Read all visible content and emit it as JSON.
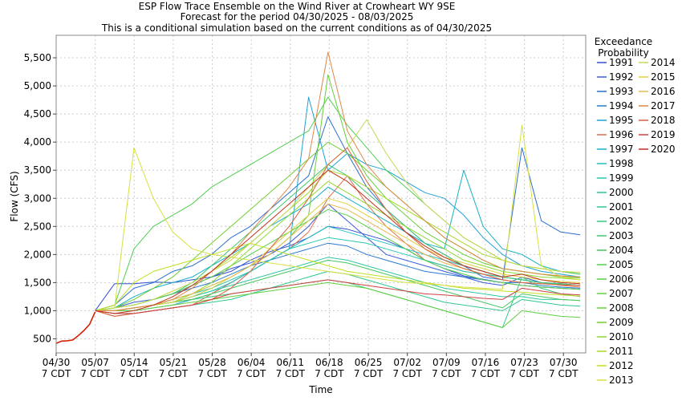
{
  "chart_data": {
    "type": "line",
    "title_lines": [
      "ESP Flow Trace Ensemble on the Wind River at Crowheart WY 9SE",
      "Forecast for the period 04/30/2025 - 08/03/2025",
      "This is a conditional simulation based on the current conditions as of 04/30/2025"
    ],
    "xlabel": "Time",
    "ylabel": "Flow (CFS)",
    "x_start": "2025-04-30",
    "x_end": "2025-08-03",
    "x_ticks": [
      {
        "date": "2025-04-30",
        "l1": "04/30",
        "l2": "7 CDT"
      },
      {
        "date": "2025-05-07",
        "l1": "05/07",
        "l2": "7 CDT"
      },
      {
        "date": "2025-05-14",
        "l1": "05/14",
        "l2": "7 CDT"
      },
      {
        "date": "2025-05-21",
        "l1": "05/21",
        "l2": "7 CDT"
      },
      {
        "date": "2025-05-28",
        "l1": "05/28",
        "l2": "7 CDT"
      },
      {
        "date": "2025-06-04",
        "l1": "06/04",
        "l2": "7 CDT"
      },
      {
        "date": "2025-06-11",
        "l1": "06/11",
        "l2": "7 CDT"
      },
      {
        "date": "2025-06-18",
        "l1": "06/18",
        "l2": "7 CDT"
      },
      {
        "date": "2025-06-25",
        "l1": "06/25",
        "l2": "7 CDT"
      },
      {
        "date": "2025-07-02",
        "l1": "07/02",
        "l2": "7 CDT"
      },
      {
        "date": "2025-07-09",
        "l1": "07/09",
        "l2": "7 CDT"
      },
      {
        "date": "2025-07-16",
        "l1": "07/16",
        "l2": "7 CDT"
      },
      {
        "date": "2025-07-23",
        "l1": "07/23",
        "l2": "7 CDT"
      },
      {
        "date": "2025-07-30",
        "l1": "07/30",
        "l2": "7 CDT"
      }
    ],
    "ylim": [
      250,
      5900
    ],
    "y_ticks": [
      {
        "value": 500,
        "label": "500"
      },
      {
        "value": 1000,
        "label": "1,000"
      },
      {
        "value": 1500,
        "label": "1,500"
      },
      {
        "value": 2000,
        "label": "2,000"
      },
      {
        "value": 2500,
        "label": "2,500"
      },
      {
        "value": 3000,
        "label": "3,000"
      },
      {
        "value": 3500,
        "label": "3,500"
      },
      {
        "value": 4000,
        "label": "4,000"
      },
      {
        "value": 4500,
        "label": "4,500"
      },
      {
        "value": 5000,
        "label": "5,000"
      },
      {
        "value": 5500,
        "label": "5,500"
      }
    ],
    "grid": true,
    "legend_title": [
      "Exceedance",
      "Probability"
    ],
    "legend_position": "right",
    "observed": {
      "color": "#d62000",
      "x": [
        "2025-04-30",
        "2025-05-01",
        "2025-05-02",
        "2025-05-03",
        "2025-05-04",
        "2025-05-05",
        "2025-05-06",
        "2025-05-07"
      ],
      "values": [
        420,
        460,
        465,
        480,
        560,
        650,
        760,
        980
      ]
    },
    "series": [
      {
        "name": "1991",
        "color": "#3050d0",
        "values": [
          1000,
          1480,
          1480,
          1510,
          1500,
          1550,
          1600,
          1700,
          1900,
          2050,
          2150,
          2300,
          2500,
          2450,
          2350,
          2250,
          2100,
          1900,
          1750,
          1620,
          1560,
          1500,
          1450,
          1420,
          1400,
          1380
        ]
      },
      {
        "name": "1992",
        "color": "#3a5ad8",
        "values": [
          1000,
          1050,
          1150,
          1200,
          1300,
          1450,
          1600,
          1750,
          1850,
          2000,
          2200,
          2500,
          2900,
          2600,
          2300,
          2000,
          1900,
          1800,
          1700,
          1600,
          1500,
          1450,
          1600,
          1500,
          1480,
          1450
        ]
      },
      {
        "name": "1993",
        "color": "#2c6fd0",
        "values": [
          1000,
          1100,
          1400,
          1500,
          1700,
          1800,
          2000,
          2300,
          2500,
          2800,
          3100,
          3400,
          4450,
          3800,
          3200,
          2800,
          2500,
          2200,
          2000,
          1800,
          1600,
          1550,
          3900,
          2600,
          2400,
          2350
        ]
      },
      {
        "name": "1994",
        "color": "#2a7ad0",
        "values": [
          1000,
          1050,
          1100,
          1200,
          1300,
          1400,
          1500,
          1650,
          1800,
          1900,
          2000,
          2100,
          2200,
          2150,
          2000,
          1900,
          1800,
          1700,
          1650,
          1600,
          1550,
          1500,
          1500,
          1450,
          1420,
          1400
        ]
      },
      {
        "name": "1995",
        "color": "#20a0d8",
        "values": [
          1000,
          1000,
          1000,
          1050,
          1100,
          1200,
          1300,
          1500,
          1700,
          1900,
          2100,
          4800,
          3500,
          3800,
          3600,
          3500,
          3300,
          3100,
          3000,
          2700,
          2300,
          2000,
          1800,
          1700,
          1650,
          1600
        ]
      },
      {
        "name": "1996",
        "color": "#e07050",
        "values": [
          1000,
          900,
          950,
          1000,
          1050,
          1100,
          1300,
          1500,
          1700,
          1900,
          2100,
          2400,
          3000,
          3400,
          2900,
          2500,
          2200,
          1900,
          1800,
          1700,
          1650,
          1600,
          1550,
          1500,
          1450,
          1420
        ]
      },
      {
        "name": "1997",
        "color": "#18b0c8",
        "values": [
          1000,
          1050,
          1250,
          1400,
          1500,
          1600,
          1800,
          2000,
          2200,
          2500,
          2700,
          2900,
          3200,
          3000,
          2800,
          2600,
          2400,
          2200,
          2100,
          3500,
          2500,
          2100,
          2000,
          1800,
          1700,
          1650
        ]
      },
      {
        "name": "1998",
        "color": "#20c0c0",
        "values": [
          1000,
          1000,
          1050,
          1100,
          1150,
          1250,
          1350,
          1500,
          1700,
          1900,
          2100,
          2300,
          2500,
          2400,
          2300,
          2200,
          2100,
          2000,
          1900,
          1800,
          1700,
          1600,
          1550,
          1500,
          1480,
          1450
        ]
      },
      {
        "name": "1999",
        "color": "#28c8b0",
        "values": [
          1000,
          1000,
          1050,
          1100,
          1200,
          1300,
          1400,
          1550,
          1700,
          1900,
          2100,
          2200,
          2300,
          2250,
          2200,
          2100,
          2000,
          1900,
          1800,
          1700,
          1650,
          1600,
          1550,
          1500,
          1470,
          1450
        ]
      },
      {
        "name": "2000",
        "color": "#30c8a0",
        "values": [
          1000,
          1000,
          1050,
          1100,
          1150,
          1250,
          1350,
          1450,
          1550,
          1650,
          1750,
          1850,
          1950,
          1900,
          1800,
          1700,
          1600,
          1500,
          1400,
          1350,
          1300,
          1250,
          1250,
          1200,
          1200,
          1180
        ]
      },
      {
        "name": "2001",
        "color": "#30c890",
        "values": [
          1000,
          950,
          950,
          1000,
          1050,
          1100,
          1150,
          1200,
          1300,
          1400,
          1500,
          1600,
          1700,
          1650,
          1550,
          1450,
          1350,
          1250,
          1150,
          1100,
          1050,
          1000,
          1200,
          1150,
          1100,
          1080
        ]
      },
      {
        "name": "2002",
        "color": "#38c880",
        "values": [
          1000,
          1000,
          1050,
          1100,
          1150,
          1200,
          1250,
          1300,
          1350,
          1400,
          1450,
          1500,
          1550,
          1500,
          1400,
          1300,
          1200,
          1100,
          1000,
          900,
          800,
          700,
          1600,
          1400,
          1300,
          1250
        ]
      },
      {
        "name": "2003",
        "color": "#40c870",
        "values": [
          1000,
          1050,
          1100,
          1200,
          1300,
          1500,
          1800,
          2100,
          2400,
          2700,
          3000,
          3300,
          3600,
          3400,
          3100,
          2800,
          2500,
          2200,
          2000,
          1800,
          1700,
          1600,
          1550,
          1500,
          1480,
          1450
        ]
      },
      {
        "name": "2004",
        "color": "#48c860",
        "values": [
          1000,
          1000,
          1050,
          1100,
          1150,
          1200,
          1300,
          1400,
          1500,
          1600,
          1700,
          1800,
          1900,
          1850,
          1750,
          1650,
          1550,
          1450,
          1350,
          1250,
          1150,
          1050,
          1300,
          1250,
          1200,
          1180
        ]
      },
      {
        "name": "2005",
        "color": "#50d050",
        "values": [
          1000,
          1100,
          2100,
          2500,
          2700,
          2900,
          3200,
          3400,
          3600,
          3800,
          4000,
          4200,
          4800,
          4300,
          3900,
          3500,
          3200,
          2900,
          2600,
          2300,
          2100,
          1900,
          1800,
          1750,
          1700,
          1650
        ]
      },
      {
        "name": "2006",
        "color": "#58d048",
        "values": [
          1000,
          1050,
          1100,
          1200,
          1300,
          1450,
          1600,
          1800,
          2000,
          2200,
          2400,
          2600,
          2800,
          2700,
          2500,
          2300,
          2100,
          1900,
          1750,
          1650,
          1550,
          1500,
          1450,
          1420,
          1400,
          1380
        ]
      },
      {
        "name": "2007",
        "color": "#60d040",
        "values": [
          1000,
          1000,
          1000,
          1050,
          1100,
          1150,
          1200,
          1250,
          1300,
          1350,
          1400,
          1450,
          1500,
          1450,
          1400,
          1300,
          1200,
          1100,
          1000,
          900,
          800,
          700,
          1000,
          950,
          900,
          880
        ]
      },
      {
        "name": "2008",
        "color": "#68d038",
        "values": [
          1000,
          1000,
          1050,
          1100,
          1200,
          1300,
          1450,
          1600,
          1800,
          2000,
          2300,
          2700,
          5200,
          4000,
          3400,
          3000,
          2700,
          2400,
          2200,
          2000,
          1850,
          1750,
          1700,
          1650,
          1620,
          1600
        ]
      },
      {
        "name": "2009",
        "color": "#70d030",
        "values": [
          1000,
          1050,
          1200,
          1400,
          1600,
          1900,
          2200,
          2500,
          2800,
          3100,
          3400,
          3700,
          4000,
          3800,
          3500,
          3200,
          2900,
          2600,
          2300,
          2100,
          1900,
          1750,
          1700,
          1650,
          1600,
          1580
        ]
      },
      {
        "name": "2010",
        "color": "#90d830",
        "values": [
          1000,
          1000,
          1050,
          1100,
          1150,
          1300,
          1500,
          1800,
          2100,
          2400,
          2700,
          3000,
          3300,
          3100,
          2900,
          2700,
          2500,
          2300,
          2100,
          1900,
          1800,
          1700,
          1650,
          1600,
          1580,
          1550
        ]
      },
      {
        "name": "2011",
        "color": "#a8d828",
        "values": [
          1000,
          1050,
          1100,
          1200,
          1350,
          1500,
          1700,
          1950,
          2200,
          2500,
          2800,
          3100,
          3500,
          3400,
          3200,
          3000,
          2800,
          2600,
          2400,
          2200,
          2000,
          1900,
          1800,
          1750,
          1700,
          1680
        ]
      },
      {
        "name": "2012",
        "color": "#c0e020",
        "values": [
          1000,
          1100,
          1500,
          1700,
          1800,
          1900,
          2000,
          2100,
          2200,
          2100,
          2000,
          1900,
          1800,
          1700,
          1650,
          1600,
          1550,
          1500,
          1450,
          1400,
          1380,
          1350,
          1330,
          1300,
          1280,
          1260
        ]
      },
      {
        "name": "2013",
        "color": "#d8e040",
        "values": [
          1000,
          1050,
          3900,
          3000,
          2400,
          2100,
          2000,
          1950,
          1900,
          1850,
          1800,
          1750,
          1700,
          1650,
          1600,
          1550,
          1500,
          1480,
          1450,
          1420,
          1400,
          1380,
          4300,
          1800,
          1600,
          1550
        ]
      },
      {
        "name": "2014",
        "color": "#c8d858",
        "values": [
          1000,
          1050,
          1100,
          1200,
          1350,
          1500,
          1700,
          1900,
          2200,
          2500,
          2800,
          3200,
          3600,
          3900,
          4400,
          3800,
          3300,
          2900,
          2600,
          2300,
          2100,
          1900,
          1800,
          1750,
          1700,
          1680
        ]
      },
      {
        "name": "2015",
        "color": "#e0d040",
        "values": [
          1000,
          1000,
          1050,
          1100,
          1150,
          1250,
          1400,
          1600,
          1800,
          2100,
          2400,
          2700,
          3000,
          2900,
          2700,
          2500,
          2300,
          2100,
          1950,
          1850,
          1750,
          1650,
          1600,
          1550,
          1520,
          1500
        ]
      },
      {
        "name": "2016",
        "color": "#e8b850",
        "values": [
          1000,
          1000,
          1050,
          1100,
          1200,
          1300,
          1450,
          1600,
          1800,
          2000,
          2300,
          2600,
          2900,
          2800,
          2600,
          2400,
          2200,
          2000,
          1850,
          1750,
          1650,
          1550,
          1500,
          1480,
          1460,
          1450
        ]
      },
      {
        "name": "2017",
        "color": "#e08848",
        "values": [
          1000,
          1000,
          1050,
          1100,
          1200,
          1400,
          1700,
          2000,
          2400,
          2800,
          3200,
          3700,
          5600,
          4200,
          3600,
          3200,
          2900,
          2600,
          2300,
          2100,
          1900,
          1750,
          1700,
          1650,
          1620,
          1600
        ]
      },
      {
        "name": "2018",
        "color": "#d86040",
        "values": [
          1000,
          900,
          950,
          1000,
          1050,
          1100,
          1200,
          1400,
          1700,
          2100,
          2500,
          3000,
          3600,
          3900,
          3300,
          2800,
          2400,
          2100,
          1900,
          1750,
          1650,
          1550,
          1500,
          1480,
          1460,
          1450
        ]
      },
      {
        "name": "2019",
        "color": "#d04040",
        "values": [
          1000,
          950,
          950,
          1000,
          1050,
          1100,
          1200,
          1300,
          1350,
          1400,
          1450,
          1500,
          1550,
          1500,
          1450,
          1400,
          1350,
          1300,
          1280,
          1250,
          1220,
          1200,
          1400,
          1350,
          1300,
          1280
        ]
      },
      {
        "name": "2020",
        "color": "#c03020",
        "values": [
          1000,
          950,
          1000,
          1100,
          1250,
          1450,
          1700,
          2000,
          2300,
          2600,
          2900,
          3200,
          3500,
          3300,
          3000,
          2700,
          2400,
          2150,
          1950,
          1800,
          1700,
          1600,
          1650,
          1550,
          1500,
          1480
        ]
      }
    ],
    "series_x_start": "2025-05-07",
    "series_x_step_days": 3.48
  }
}
